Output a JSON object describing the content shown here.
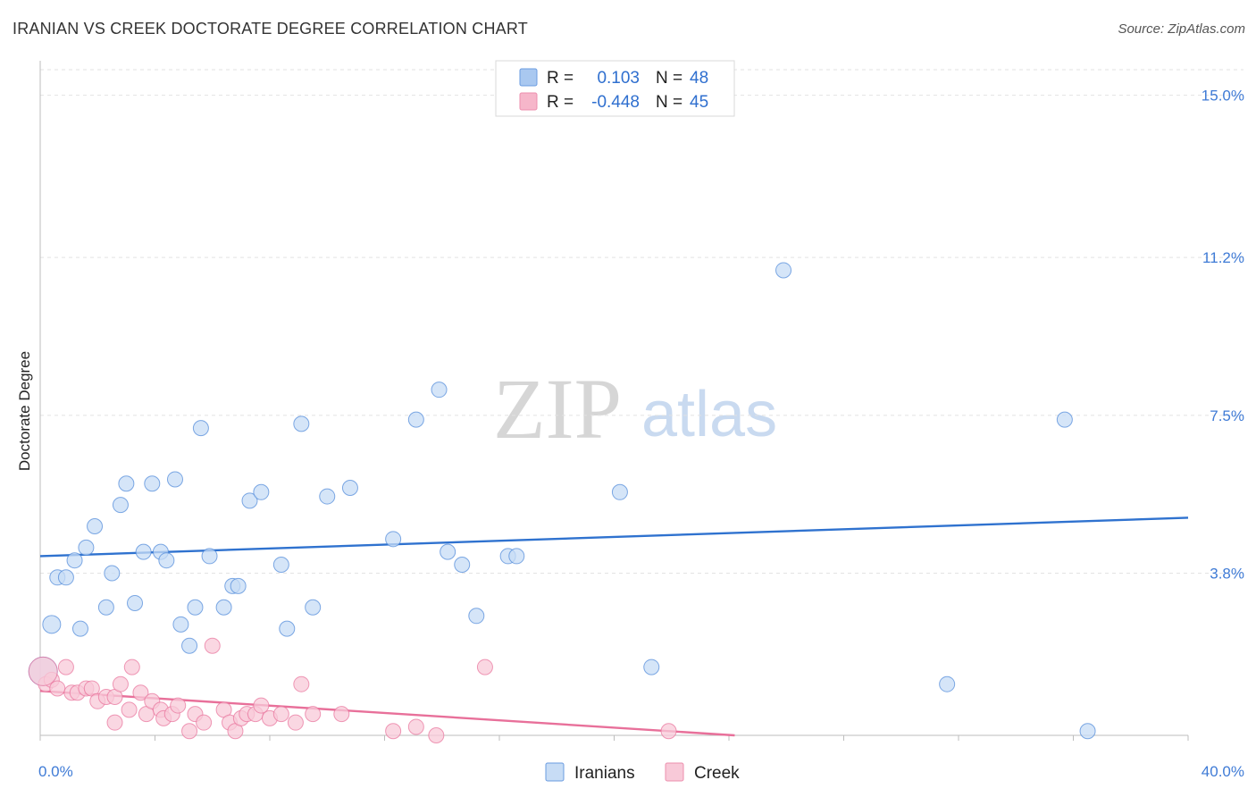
{
  "header": {
    "title": "IRANIAN VS CREEK DOCTORATE DEGREE CORRELATION CHART",
    "source": "Source: ZipAtlas.com"
  },
  "watermark": {
    "zip": "ZIP",
    "atlas": "atlas"
  },
  "legend": {
    "r_label": "R =",
    "n_label": "N =",
    "entries": [
      {
        "r": "0.103",
        "n": "48",
        "color": "#a9c8f0"
      },
      {
        "r": "-0.448",
        "n": "45",
        "color": "#f6b6ca"
      }
    ]
  },
  "chart_data": {
    "type": "scatter",
    "title": "IRANIAN VS CREEK DOCTORATE DEGREE CORRELATION CHART",
    "xlabel": "",
    "ylabel": "Doctorate Degree",
    "xlim": [
      0,
      40
    ],
    "ylim": [
      0,
      15.6
    ],
    "x_tick_labels": [
      "0.0%",
      "40.0%"
    ],
    "y_ticks": [
      3.8,
      7.5,
      11.2,
      15.0
    ],
    "y_tick_labels": [
      "3.8%",
      "7.5%",
      "11.2%",
      "15.0%"
    ],
    "grid": true,
    "series": [
      {
        "name": "Iranians",
        "color": "#4a86d8",
        "fill": "#c7dcf5",
        "trend": {
          "x": [
            0,
            40
          ],
          "y": [
            4.2,
            5.1
          ]
        },
        "points": [
          [
            0.4,
            2.6
          ],
          [
            0.6,
            3.7
          ],
          [
            0.9,
            3.7
          ],
          [
            1.2,
            4.1
          ],
          [
            1.4,
            2.5
          ],
          [
            1.6,
            4.4
          ],
          [
            1.9,
            4.9
          ],
          [
            2.3,
            3.0
          ],
          [
            2.5,
            3.8
          ],
          [
            2.8,
            5.4
          ],
          [
            3.0,
            5.9
          ],
          [
            3.3,
            3.1
          ],
          [
            3.6,
            4.3
          ],
          [
            3.9,
            5.9
          ],
          [
            4.2,
            4.3
          ],
          [
            4.4,
            4.1
          ],
          [
            4.7,
            6.0
          ],
          [
            4.9,
            2.6
          ],
          [
            5.2,
            2.1
          ],
          [
            5.4,
            3.0
          ],
          [
            5.6,
            7.2
          ],
          [
            5.9,
            4.2
          ],
          [
            6.4,
            3.0
          ],
          [
            6.7,
            3.5
          ],
          [
            6.9,
            3.5
          ],
          [
            7.3,
            5.5
          ],
          [
            7.7,
            5.7
          ],
          [
            8.4,
            4.0
          ],
          [
            8.6,
            2.5
          ],
          [
            9.1,
            7.3
          ],
          [
            9.5,
            3.0
          ],
          [
            10.0,
            5.6
          ],
          [
            10.8,
            5.8
          ],
          [
            12.3,
            4.6
          ],
          [
            13.1,
            7.4
          ],
          [
            13.9,
            8.1
          ],
          [
            14.2,
            4.3
          ],
          [
            14.7,
            4.0
          ],
          [
            15.2,
            2.8
          ],
          [
            16.3,
            4.2
          ],
          [
            16.6,
            4.2
          ],
          [
            20.2,
            5.7
          ],
          [
            21.3,
            1.6
          ],
          [
            25.9,
            10.9
          ],
          [
            31.6,
            1.2
          ],
          [
            35.7,
            7.4
          ],
          [
            36.5,
            0.1
          ],
          [
            0.1,
            1.5
          ]
        ]
      },
      {
        "name": "Creek",
        "color": "#e8709a",
        "fill": "#f8c9d8",
        "trend": {
          "x": [
            0,
            24.2
          ],
          "y": [
            1.04,
            0.0
          ]
        },
        "points": [
          [
            0.2,
            1.2
          ],
          [
            0.4,
            1.3
          ],
          [
            0.6,
            1.1
          ],
          [
            0.9,
            1.6
          ],
          [
            1.1,
            1.0
          ],
          [
            1.3,
            1.0
          ],
          [
            1.6,
            1.1
          ],
          [
            1.8,
            1.1
          ],
          [
            2.0,
            0.8
          ],
          [
            2.3,
            0.9
          ],
          [
            2.6,
            0.9
          ],
          [
            2.6,
            0.3
          ],
          [
            2.8,
            1.2
          ],
          [
            3.1,
            0.6
          ],
          [
            3.2,
            1.6
          ],
          [
            3.5,
            1.0
          ],
          [
            3.7,
            0.5
          ],
          [
            3.9,
            0.8
          ],
          [
            4.2,
            0.6
          ],
          [
            4.3,
            0.4
          ],
          [
            4.6,
            0.5
          ],
          [
            4.8,
            0.7
          ],
          [
            5.2,
            0.1
          ],
          [
            5.4,
            0.5
          ],
          [
            5.7,
            0.3
          ],
          [
            6.0,
            2.1
          ],
          [
            6.4,
            0.6
          ],
          [
            6.6,
            0.3
          ],
          [
            6.8,
            0.1
          ],
          [
            7.0,
            0.4
          ],
          [
            7.2,
            0.5
          ],
          [
            7.5,
            0.5
          ],
          [
            7.7,
            0.7
          ],
          [
            8.0,
            0.4
          ],
          [
            8.4,
            0.5
          ],
          [
            8.9,
            0.3
          ],
          [
            9.1,
            1.2
          ],
          [
            9.5,
            0.5
          ],
          [
            10.5,
            0.5
          ],
          [
            12.3,
            0.1
          ],
          [
            13.1,
            0.2
          ],
          [
            13.8,
            0.0
          ],
          [
            15.5,
            1.6
          ],
          [
            21.9,
            0.1
          ],
          [
            0.1,
            1.5
          ]
        ]
      }
    ]
  }
}
